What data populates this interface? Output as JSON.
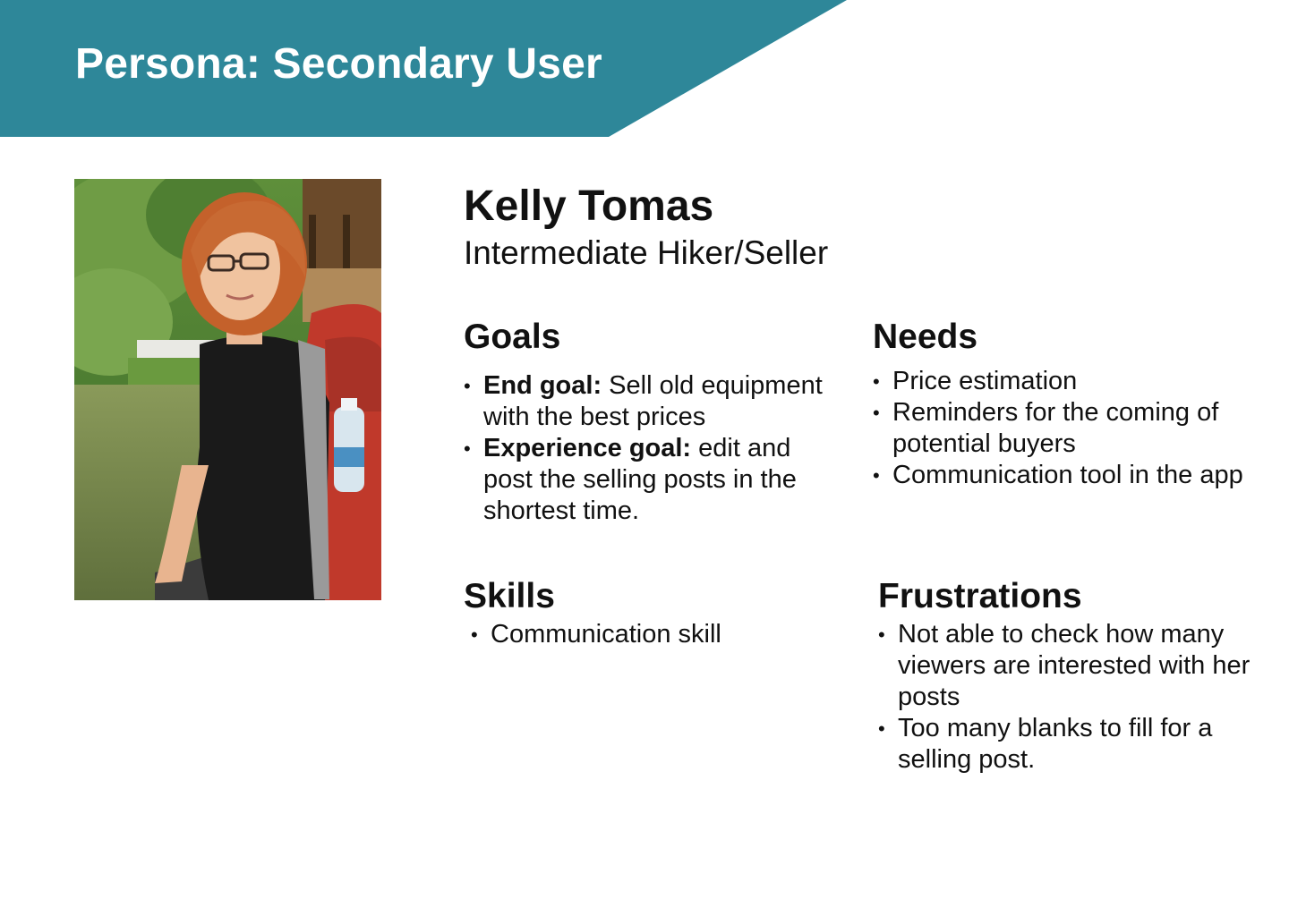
{
  "header": {
    "title": "Persona: Secondary User",
    "color": "#2E8799"
  },
  "persona": {
    "name": "Kelly Tomas",
    "role": "Intermediate Hiker/Seller",
    "photo_icon": "persona-photo"
  },
  "goals": {
    "heading": "Goals",
    "items": [
      {
        "label": "End goal:",
        "text": " Sell old equipment with the best prices"
      },
      {
        "label": "Experience goal:",
        "text": " edit and post the selling posts in the shortest time."
      }
    ]
  },
  "needs": {
    "heading": "Needs",
    "items": [
      "Price estimation",
      "Reminders for the coming of potential buyers",
      "Communication tool in the app"
    ]
  },
  "skills": {
    "heading": "Skills",
    "items": [
      "Communication skill"
    ]
  },
  "frustrations": {
    "heading": "Frustrations",
    "items": [
      "Not able to check how many viewers are interested with her posts",
      "Too many blanks to fill for a selling post."
    ]
  },
  "bullet": "•"
}
